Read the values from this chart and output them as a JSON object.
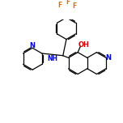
{
  "background_color": "#ffffff",
  "bond_color": "#000000",
  "atom_colors": {
    "N": "#0000cc",
    "O": "#cc0000",
    "F": "#cc7700",
    "C": "#000000"
  },
  "figsize": [
    1.52,
    1.52
  ],
  "dpi": 100
}
